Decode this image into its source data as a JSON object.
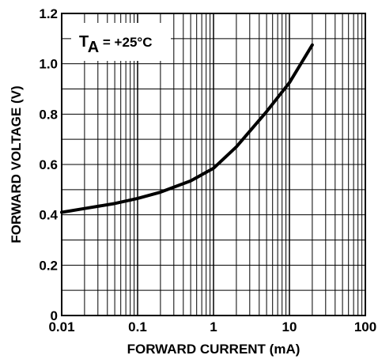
{
  "chart_data": {
    "type": "line",
    "title": "",
    "xlabel": "FORWARD CURRENT (mA)",
    "ylabel": "FORWARD VOLTAGE (V)",
    "x_scale": "log",
    "xlim": [
      0.01,
      100
    ],
    "ylim": [
      0,
      1.2
    ],
    "x_ticks": [
      "0.01",
      "0.1",
      "1",
      "10",
      "100"
    ],
    "y_ticks": [
      "0",
      "0.2",
      "0.4",
      "0.6",
      "0.8",
      "1.0",
      "1.2"
    ],
    "grid": true,
    "annotation": {
      "main": "T",
      "sub": "A",
      "rest": " = +25°C"
    },
    "series": [
      {
        "name": "",
        "x": [
          0.01,
          0.02,
          0.05,
          0.1,
          0.2,
          0.5,
          1,
          2,
          5,
          10,
          20
        ],
        "y": [
          0.41,
          0.425,
          0.445,
          0.465,
          0.49,
          0.535,
          0.585,
          0.67,
          0.81,
          0.925,
          1.075
        ]
      }
    ]
  }
}
